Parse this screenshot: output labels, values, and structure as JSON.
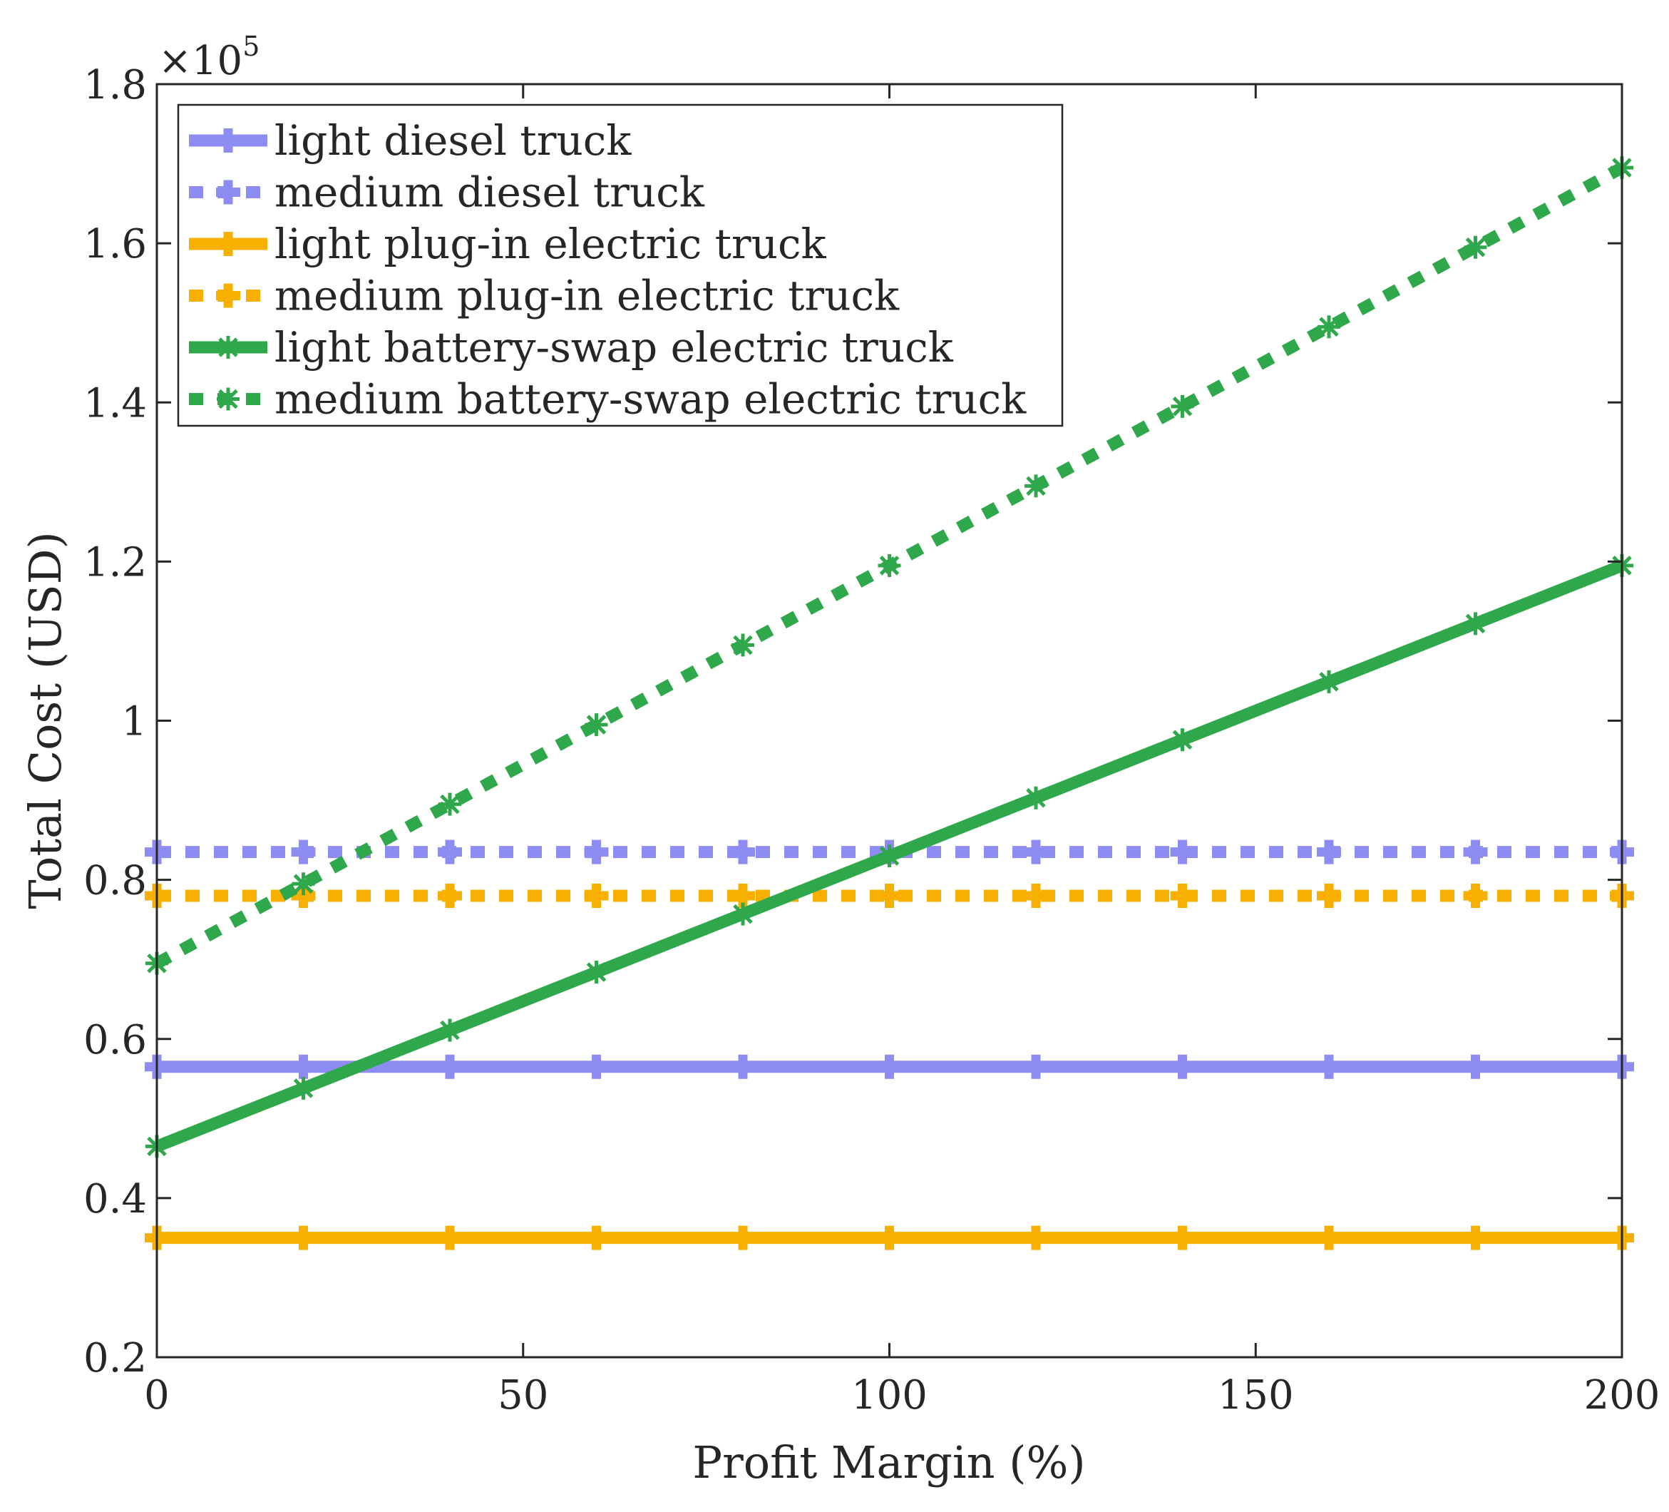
{
  "chart_data": {
    "type": "line",
    "title": "",
    "xlabel": "Profit Margin (%)",
    "ylabel": "Total Cost (USD)",
    "y_multiplier": {
      "base": "×10",
      "exponent": "5"
    },
    "xlim": [
      0,
      200
    ],
    "ylim": [
      0.2,
      1.8
    ],
    "x_ticks": [
      0,
      50,
      100,
      150,
      200
    ],
    "x_tick_labels": [
      "0",
      "50",
      "100",
      "150",
      "200"
    ],
    "y_ticks": [
      0.2,
      0.4,
      0.6,
      0.8,
      1.0,
      1.2,
      1.4,
      1.6,
      1.8
    ],
    "y_tick_labels": [
      "0.2",
      "0.4",
      "0.6",
      "0.8",
      "1",
      "1.2",
      "1.4",
      "1.6",
      "1.8"
    ],
    "grid": false,
    "legend_position": "top-left",
    "x": [
      0,
      20,
      40,
      60,
      80,
      100,
      120,
      140,
      160,
      180,
      200
    ],
    "series": [
      {
        "name": "light diesel truck",
        "color": "#8c8cf2",
        "dash": "solid",
        "marker": "plus",
        "values": [
          0.565,
          0.565,
          0.565,
          0.565,
          0.565,
          0.565,
          0.565,
          0.565,
          0.565,
          0.565,
          0.565
        ]
      },
      {
        "name": "medium diesel truck",
        "color": "#8c8cf2",
        "dash": "dotted",
        "marker": "plus",
        "values": [
          0.835,
          0.835,
          0.835,
          0.835,
          0.835,
          0.835,
          0.835,
          0.835,
          0.835,
          0.835,
          0.835
        ]
      },
      {
        "name": "light plug-in electric truck",
        "color": "#f7b000",
        "dash": "solid",
        "marker": "plus",
        "values": [
          0.35,
          0.35,
          0.35,
          0.35,
          0.35,
          0.35,
          0.35,
          0.35,
          0.35,
          0.35,
          0.35
        ]
      },
      {
        "name": "medium plug-in electric truck",
        "color": "#f7b000",
        "dash": "dotted",
        "marker": "plus",
        "values": [
          0.78,
          0.78,
          0.78,
          0.78,
          0.78,
          0.78,
          0.78,
          0.78,
          0.78,
          0.78,
          0.78
        ]
      },
      {
        "name": "light battery-swap electric truck",
        "color": "#2ea84a",
        "dash": "solid",
        "marker": "star",
        "values": [
          0.465,
          0.538,
          0.611,
          0.684,
          0.757,
          0.83,
          0.903,
          0.976,
          1.049,
          1.122,
          1.195
        ]
      },
      {
        "name": "medium battery-swap electric truck",
        "color": "#2ea84a",
        "dash": "dotted",
        "marker": "star",
        "values": [
          0.695,
          0.795,
          0.895,
          0.995,
          1.095,
          1.195,
          1.295,
          1.395,
          1.495,
          1.595,
          1.695
        ]
      }
    ]
  }
}
